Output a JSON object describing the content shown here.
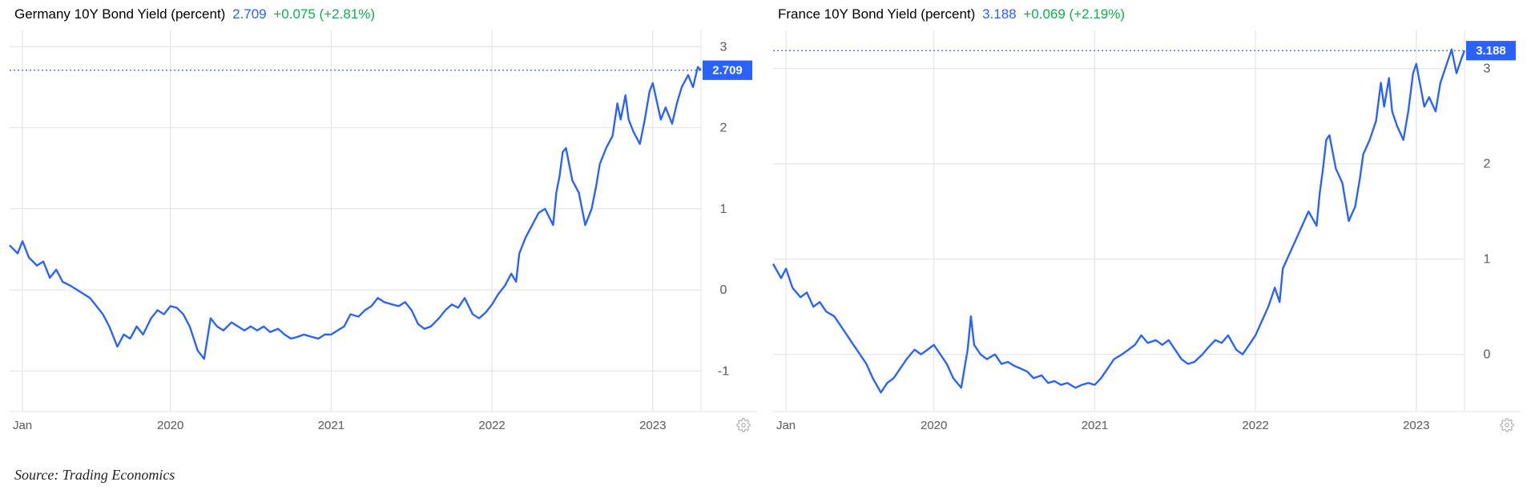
{
  "source_line": "Source: Trading Economics",
  "line_color": "#2962ff",
  "grid_color": "#e5e5e5",
  "axis_label_color": "#6a6a6a",
  "badge_bg": "#2962ff",
  "badge_text": "#ffffff",
  "dash_color": "#2962ff",
  "panels": [
    {
      "title": "Germany 10Y Bond Yield (percent)",
      "value": "2.709",
      "change": "+0.075 (+2.81%)",
      "badge": "2.709",
      "ylim": [
        -1.5,
        3.2
      ],
      "yticks": [
        -1,
        0,
        1,
        2,
        3
      ],
      "x_start_year": 2019.0,
      "x_end_year": 2023.3,
      "xticks": [
        {
          "pos": 2019.08,
          "label": "Jan"
        },
        {
          "pos": 2020.0,
          "label": "2020"
        },
        {
          "pos": 2021.0,
          "label": "2021"
        },
        {
          "pos": 2022.0,
          "label": "2022"
        },
        {
          "pos": 2023.0,
          "label": "2023"
        }
      ],
      "series": [
        [
          2019.0,
          0.55
        ],
        [
          2019.05,
          0.45
        ],
        [
          2019.08,
          0.6
        ],
        [
          2019.12,
          0.4
        ],
        [
          2019.17,
          0.3
        ],
        [
          2019.21,
          0.35
        ],
        [
          2019.25,
          0.15
        ],
        [
          2019.29,
          0.25
        ],
        [
          2019.33,
          0.1
        ],
        [
          2019.38,
          0.05
        ],
        [
          2019.42,
          0.0
        ],
        [
          2019.46,
          -0.05
        ],
        [
          2019.5,
          -0.1
        ],
        [
          2019.54,
          -0.2
        ],
        [
          2019.58,
          -0.3
        ],
        [
          2019.62,
          -0.45
        ],
        [
          2019.67,
          -0.7
        ],
        [
          2019.71,
          -0.55
        ],
        [
          2019.75,
          -0.6
        ],
        [
          2019.79,
          -0.45
        ],
        [
          2019.83,
          -0.55
        ],
        [
          2019.88,
          -0.35
        ],
        [
          2019.92,
          -0.25
        ],
        [
          2019.96,
          -0.3
        ],
        [
          2020.0,
          -0.2
        ],
        [
          2020.04,
          -0.22
        ],
        [
          2020.08,
          -0.3
        ],
        [
          2020.12,
          -0.45
        ],
        [
          2020.17,
          -0.75
        ],
        [
          2020.21,
          -0.85
        ],
        [
          2020.25,
          -0.35
        ],
        [
          2020.29,
          -0.45
        ],
        [
          2020.33,
          -0.5
        ],
        [
          2020.38,
          -0.4
        ],
        [
          2020.42,
          -0.45
        ],
        [
          2020.46,
          -0.5
        ],
        [
          2020.5,
          -0.45
        ],
        [
          2020.54,
          -0.5
        ],
        [
          2020.58,
          -0.45
        ],
        [
          2020.62,
          -0.52
        ],
        [
          2020.67,
          -0.48
        ],
        [
          2020.71,
          -0.55
        ],
        [
          2020.75,
          -0.6
        ],
        [
          2020.79,
          -0.58
        ],
        [
          2020.83,
          -0.55
        ],
        [
          2020.88,
          -0.58
        ],
        [
          2020.92,
          -0.6
        ],
        [
          2020.96,
          -0.55
        ],
        [
          2021.0,
          -0.55
        ],
        [
          2021.04,
          -0.5
        ],
        [
          2021.08,
          -0.45
        ],
        [
          2021.12,
          -0.3
        ],
        [
          2021.17,
          -0.33
        ],
        [
          2021.21,
          -0.25
        ],
        [
          2021.25,
          -0.2
        ],
        [
          2021.29,
          -0.1
        ],
        [
          2021.33,
          -0.15
        ],
        [
          2021.38,
          -0.18
        ],
        [
          2021.42,
          -0.2
        ],
        [
          2021.46,
          -0.15
        ],
        [
          2021.5,
          -0.25
        ],
        [
          2021.54,
          -0.42
        ],
        [
          2021.58,
          -0.48
        ],
        [
          2021.62,
          -0.45
        ],
        [
          2021.67,
          -0.35
        ],
        [
          2021.71,
          -0.25
        ],
        [
          2021.75,
          -0.18
        ],
        [
          2021.79,
          -0.22
        ],
        [
          2021.83,
          -0.1
        ],
        [
          2021.88,
          -0.3
        ],
        [
          2021.92,
          -0.35
        ],
        [
          2021.96,
          -0.28
        ],
        [
          2022.0,
          -0.18
        ],
        [
          2022.04,
          -0.05
        ],
        [
          2022.08,
          0.05
        ],
        [
          2022.12,
          0.2
        ],
        [
          2022.15,
          0.1
        ],
        [
          2022.17,
          0.45
        ],
        [
          2022.21,
          0.65
        ],
        [
          2022.25,
          0.8
        ],
        [
          2022.29,
          0.95
        ],
        [
          2022.33,
          1.0
        ],
        [
          2022.38,
          0.8
        ],
        [
          2022.4,
          1.2
        ],
        [
          2022.42,
          1.4
        ],
        [
          2022.44,
          1.7
        ],
        [
          2022.46,
          1.75
        ],
        [
          2022.5,
          1.35
        ],
        [
          2022.54,
          1.2
        ],
        [
          2022.58,
          0.8
        ],
        [
          2022.62,
          1.0
        ],
        [
          2022.65,
          1.3
        ],
        [
          2022.67,
          1.55
        ],
        [
          2022.71,
          1.75
        ],
        [
          2022.75,
          1.9
        ],
        [
          2022.78,
          2.3
        ],
        [
          2022.8,
          2.1
        ],
        [
          2022.83,
          2.4
        ],
        [
          2022.85,
          2.1
        ],
        [
          2022.88,
          1.95
        ],
        [
          2022.92,
          1.8
        ],
        [
          2022.95,
          2.1
        ],
        [
          2022.98,
          2.45
        ],
        [
          2023.0,
          2.55
        ],
        [
          2023.05,
          2.1
        ],
        [
          2023.08,
          2.25
        ],
        [
          2023.12,
          2.05
        ],
        [
          2023.15,
          2.3
        ],
        [
          2023.18,
          2.5
        ],
        [
          2023.22,
          2.65
        ],
        [
          2023.25,
          2.5
        ],
        [
          2023.28,
          2.75
        ],
        [
          2023.3,
          2.709
        ]
      ]
    },
    {
      "title": "France 10Y Bond Yield (percent)",
      "value": "3.188",
      "change": "+0.069 (+2.19%)",
      "badge": "3.188",
      "ylim": [
        -0.6,
        3.4
      ],
      "yticks": [
        0,
        1,
        2,
        3
      ],
      "x_start_year": 2019.0,
      "x_end_year": 2023.3,
      "xticks": [
        {
          "pos": 2019.08,
          "label": "Jan"
        },
        {
          "pos": 2020.0,
          "label": "2020"
        },
        {
          "pos": 2021.0,
          "label": "2021"
        },
        {
          "pos": 2022.0,
          "label": "2022"
        },
        {
          "pos": 2023.0,
          "label": "2023"
        }
      ],
      "series": [
        [
          2019.0,
          0.95
        ],
        [
          2019.05,
          0.8
        ],
        [
          2019.08,
          0.9
        ],
        [
          2019.12,
          0.7
        ],
        [
          2019.17,
          0.6
        ],
        [
          2019.21,
          0.65
        ],
        [
          2019.25,
          0.5
        ],
        [
          2019.29,
          0.55
        ],
        [
          2019.33,
          0.45
        ],
        [
          2019.38,
          0.4
        ],
        [
          2019.42,
          0.3
        ],
        [
          2019.46,
          0.2
        ],
        [
          2019.5,
          0.1
        ],
        [
          2019.54,
          0.0
        ],
        [
          2019.58,
          -0.1
        ],
        [
          2019.62,
          -0.25
        ],
        [
          2019.67,
          -0.4
        ],
        [
          2019.71,
          -0.3
        ],
        [
          2019.75,
          -0.25
        ],
        [
          2019.79,
          -0.15
        ],
        [
          2019.83,
          -0.05
        ],
        [
          2019.88,
          0.05
        ],
        [
          2019.92,
          0.0
        ],
        [
          2019.96,
          0.05
        ],
        [
          2020.0,
          0.1
        ],
        [
          2020.04,
          0.0
        ],
        [
          2020.08,
          -0.1
        ],
        [
          2020.12,
          -0.25
        ],
        [
          2020.17,
          -0.35
        ],
        [
          2020.21,
          0.05
        ],
        [
          2020.23,
          0.4
        ],
        [
          2020.25,
          0.1
        ],
        [
          2020.29,
          0.0
        ],
        [
          2020.33,
          -0.05
        ],
        [
          2020.38,
          0.0
        ],
        [
          2020.42,
          -0.1
        ],
        [
          2020.46,
          -0.08
        ],
        [
          2020.5,
          -0.12
        ],
        [
          2020.54,
          -0.15
        ],
        [
          2020.58,
          -0.18
        ],
        [
          2020.62,
          -0.25
        ],
        [
          2020.67,
          -0.22
        ],
        [
          2020.71,
          -0.3
        ],
        [
          2020.75,
          -0.28
        ],
        [
          2020.79,
          -0.32
        ],
        [
          2020.83,
          -0.3
        ],
        [
          2020.88,
          -0.35
        ],
        [
          2020.92,
          -0.32
        ],
        [
          2020.96,
          -0.3
        ],
        [
          2021.0,
          -0.32
        ],
        [
          2021.04,
          -0.25
        ],
        [
          2021.08,
          -0.15
        ],
        [
          2021.12,
          -0.05
        ],
        [
          2021.17,
          0.0
        ],
        [
          2021.21,
          0.05
        ],
        [
          2021.25,
          0.1
        ],
        [
          2021.29,
          0.2
        ],
        [
          2021.33,
          0.12
        ],
        [
          2021.38,
          0.15
        ],
        [
          2021.42,
          0.1
        ],
        [
          2021.46,
          0.15
        ],
        [
          2021.5,
          0.05
        ],
        [
          2021.54,
          -0.05
        ],
        [
          2021.58,
          -0.1
        ],
        [
          2021.62,
          -0.08
        ],
        [
          2021.67,
          0.0
        ],
        [
          2021.71,
          0.08
        ],
        [
          2021.75,
          0.15
        ],
        [
          2021.79,
          0.12
        ],
        [
          2021.83,
          0.2
        ],
        [
          2021.88,
          0.05
        ],
        [
          2021.92,
          0.0
        ],
        [
          2021.96,
          0.1
        ],
        [
          2022.0,
          0.2
        ],
        [
          2022.04,
          0.35
        ],
        [
          2022.08,
          0.5
        ],
        [
          2022.12,
          0.7
        ],
        [
          2022.15,
          0.55
        ],
        [
          2022.17,
          0.9
        ],
        [
          2022.21,
          1.05
        ],
        [
          2022.25,
          1.2
        ],
        [
          2022.29,
          1.35
        ],
        [
          2022.33,
          1.5
        ],
        [
          2022.38,
          1.35
        ],
        [
          2022.4,
          1.7
        ],
        [
          2022.42,
          1.95
        ],
        [
          2022.44,
          2.25
        ],
        [
          2022.46,
          2.3
        ],
        [
          2022.5,
          1.95
        ],
        [
          2022.54,
          1.8
        ],
        [
          2022.58,
          1.4
        ],
        [
          2022.62,
          1.55
        ],
        [
          2022.65,
          1.85
        ],
        [
          2022.67,
          2.1
        ],
        [
          2022.71,
          2.25
        ],
        [
          2022.75,
          2.45
        ],
        [
          2022.78,
          2.85
        ],
        [
          2022.8,
          2.6
        ],
        [
          2022.83,
          2.9
        ],
        [
          2022.85,
          2.55
        ],
        [
          2022.88,
          2.4
        ],
        [
          2022.92,
          2.25
        ],
        [
          2022.95,
          2.55
        ],
        [
          2022.98,
          2.95
        ],
        [
          2023.0,
          3.05
        ],
        [
          2023.05,
          2.6
        ],
        [
          2023.08,
          2.7
        ],
        [
          2023.12,
          2.55
        ],
        [
          2023.15,
          2.85
        ],
        [
          2023.18,
          3.0
        ],
        [
          2023.22,
          3.2
        ],
        [
          2023.25,
          2.95
        ],
        [
          2023.28,
          3.1
        ],
        [
          2023.3,
          3.188
        ]
      ]
    }
  ]
}
